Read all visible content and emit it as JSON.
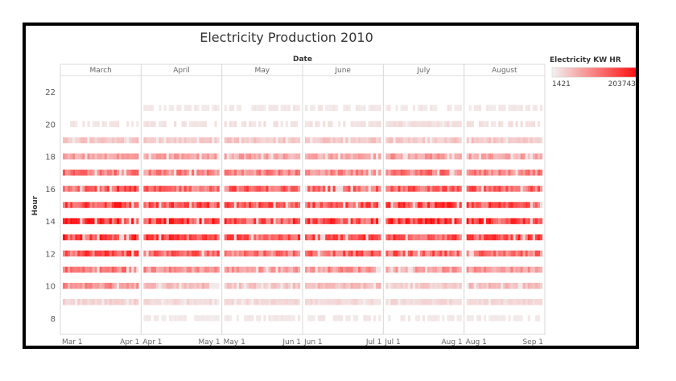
{
  "chart_data": {
    "type": "heatmap",
    "title": "Electricity Production 2010",
    "xlabel": "Date",
    "ylabel": "Hour",
    "months": [
      "March",
      "April",
      "May",
      "June",
      "July",
      "August"
    ],
    "month_start_labels": [
      "Mar 1",
      "Apr 1",
      "May 1",
      "Jun 1",
      "Jul 1",
      "Aug 1"
    ],
    "month_end_labels": [
      "Apr 1",
      "May 1",
      "Jun 1",
      "Jul 1",
      "Aug 1",
      "Sep 1"
    ],
    "days_in_month": [
      31,
      30,
      31,
      30,
      31,
      31
    ],
    "y_ticks": [
      8,
      10,
      12,
      14,
      16,
      18,
      20,
      22
    ],
    "ylim": [
      7,
      23
    ],
    "hours": [
      8,
      9,
      10,
      11,
      12,
      13,
      14,
      15,
      16,
      17,
      18,
      19,
      20,
      21
    ],
    "legend": {
      "title": "Electricity KW HR",
      "min": 1421,
      "max": 203743,
      "min_label": "1421",
      "max_label": "203743",
      "low_color": "#f2f2f2",
      "high_color": "#ff0d0d"
    },
    "hourly_intensity": {
      "8": [
        0,
        0.04,
        0.05,
        0.05,
        0.05,
        0.04
      ],
      "9": [
        0.15,
        0.12,
        0.12,
        0.12,
        0.12,
        0.12
      ],
      "10": [
        0.45,
        0.25,
        0.22,
        0.25,
        0.18,
        0.25
      ],
      "11": [
        0.55,
        0.45,
        0.4,
        0.45,
        0.4,
        0.4
      ],
      "12": [
        0.75,
        0.65,
        0.6,
        0.65,
        0.65,
        0.6
      ],
      "13": [
        0.8,
        0.75,
        0.7,
        0.7,
        0.75,
        0.72
      ],
      "14": [
        0.85,
        0.78,
        0.75,
        0.75,
        0.8,
        0.78
      ],
      "15": [
        0.8,
        0.72,
        0.7,
        0.7,
        0.75,
        0.72
      ],
      "16": [
        0.7,
        0.62,
        0.65,
        0.62,
        0.65,
        0.65
      ],
      "17": [
        0.55,
        0.5,
        0.5,
        0.45,
        0.55,
        0.5
      ],
      "18": [
        0.38,
        0.35,
        0.35,
        0.35,
        0.4,
        0.35
      ],
      "19": [
        0.2,
        0.18,
        0.2,
        0.2,
        0.2,
        0.2
      ],
      "20": [
        0.06,
        0.08,
        0.08,
        0.08,
        0.1,
        0.08
      ],
      "21": [
        0,
        0.05,
        0.05,
        0.05,
        0.05,
        0.05
      ]
    }
  }
}
